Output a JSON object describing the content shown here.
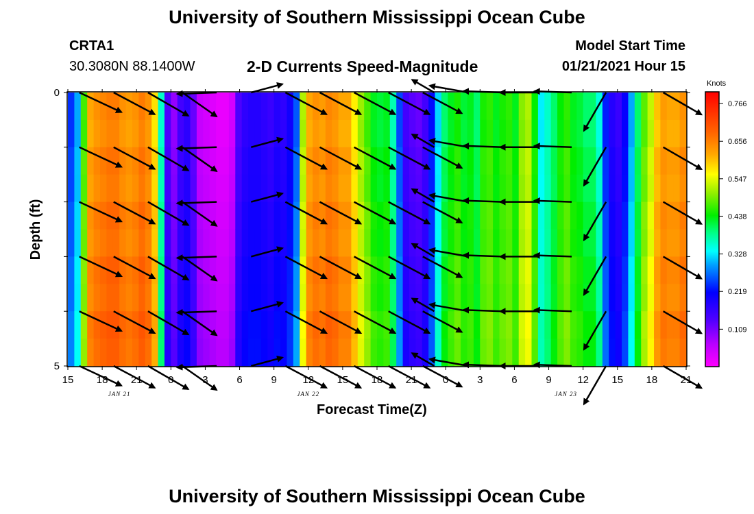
{
  "header": {
    "title": "University of Southern Mississippi Ocean Cube",
    "station": "CRTA1",
    "location": "30.3080N 88.1400W",
    "chart_title": "2-D Currents Speed-Magnitude",
    "model_start_label": "Model Start Time",
    "model_start_value": "01/21/2021 Hour 15"
  },
  "footer": {
    "title": "University of Southern Mississippi Ocean Cube"
  },
  "chart_data": {
    "type": "heatmap",
    "title": "2-D Currents Speed-Magnitude",
    "xlabel": "Forecast Time(Z)",
    "ylabel": "Depth (ft)",
    "x_unit": "hours from 01/21/2021 15Z",
    "x_range": [
      0,
      54
    ],
    "y_range": [
      0,
      5
    ],
    "y_ticks": [
      "0",
      "5"
    ],
    "x_tick_labels": [
      "15",
      "18",
      "21",
      "0",
      "3",
      "6",
      "9",
      "12",
      "15",
      "18",
      "21",
      "0",
      "3",
      "6",
      "9",
      "12",
      "15",
      "18",
      "21"
    ],
    "date_labels": [
      {
        "text": "JAN 21",
        "hour": 4.5
      },
      {
        "text": "JAN 22",
        "hour": 21
      },
      {
        "text": "JAN 23",
        "hour": 43.5
      }
    ],
    "colorbar": {
      "unit": "Knots",
      "min": 0.0,
      "max": 0.8,
      "ticks": [
        "0.766",
        "0.656",
        "0.547",
        "0.438",
        "0.328",
        "0.219",
        "0.109"
      ]
    },
    "speed_knots": [
      0.24,
      0.3,
      0.47,
      0.62,
      0.64,
      0.65,
      0.66,
      0.66,
      0.64,
      0.63,
      0.64,
      0.66,
      0.64,
      0.58,
      0.36,
      0.14,
      0.09,
      0.15,
      0.17,
      0.12,
      0.05,
      0.04,
      0.03,
      0.02,
      0.02,
      0.04,
      0.14,
      0.17,
      0.18,
      0.18,
      0.17,
      0.16,
      0.18,
      0.17,
      0.2,
      0.26,
      0.52,
      0.62,
      0.64,
      0.63,
      0.65,
      0.64,
      0.62,
      0.62,
      0.57,
      0.51,
      0.47,
      0.43,
      0.42,
      0.43,
      0.37,
      0.25,
      0.15,
      0.13,
      0.12,
      0.15,
      0.22,
      0.32,
      0.4,
      0.43,
      0.45,
      0.42,
      0.43,
      0.4,
      0.45,
      0.46,
      0.43,
      0.45,
      0.46,
      0.43,
      0.5,
      0.52,
      0.44,
      0.33,
      0.36,
      0.4,
      0.44,
      0.46,
      0.43,
      0.42,
      0.4,
      0.4,
      0.35,
      0.23,
      0.18,
      0.16,
      0.21,
      0.3,
      0.4,
      0.48,
      0.53,
      0.6,
      0.63,
      0.62,
      0.62,
      0.64
    ],
    "arrows": {
      "columns": [
        {
          "hour": 1,
          "dir_deg": 115,
          "length_ft": 1.0
        },
        {
          "hour": 4,
          "dir_deg": 118,
          "length_ft": 1.0
        },
        {
          "hour": 7,
          "dir_deg": 120,
          "length_ft": 1.0
        },
        {
          "hour": 10,
          "dir_deg": 125,
          "length_ft": 0.9
        },
        {
          "hour": 13,
          "dir_deg": 268,
          "length_ft": 0.85
        },
        {
          "hour": 16,
          "dir_deg": 75,
          "length_ft": 0.7
        },
        {
          "hour": 19,
          "dir_deg": 118,
          "length_ft": 1.0
        },
        {
          "hour": 22,
          "dir_deg": 118,
          "length_ft": 1.0
        },
        {
          "hour": 25,
          "dir_deg": 118,
          "length_ft": 1.0
        },
        {
          "hour": 28,
          "dir_deg": 118,
          "length_ft": 1.0
        },
        {
          "hour": 31,
          "dir_deg": 118,
          "length_ft": 0.95
        },
        {
          "hour": 32,
          "dir_deg": 300,
          "length_ft": 0.55
        },
        {
          "hour": 35,
          "dir_deg": 280,
          "length_ft": 0.85
        },
        {
          "hour": 38,
          "dir_deg": 272,
          "length_ft": 0.85
        },
        {
          "hour": 41,
          "dir_deg": 270,
          "length_ft": 0.8
        },
        {
          "hour": 44,
          "dir_deg": 272,
          "length_ft": 0.8
        },
        {
          "hour": 47,
          "dir_deg": 210,
          "length_ft": 0.95
        },
        {
          "hour": 52,
          "dir_deg": 120,
          "length_ft": 0.95
        }
      ],
      "depths_ft": [
        0,
        1,
        2,
        3,
        4,
        5
      ]
    }
  }
}
